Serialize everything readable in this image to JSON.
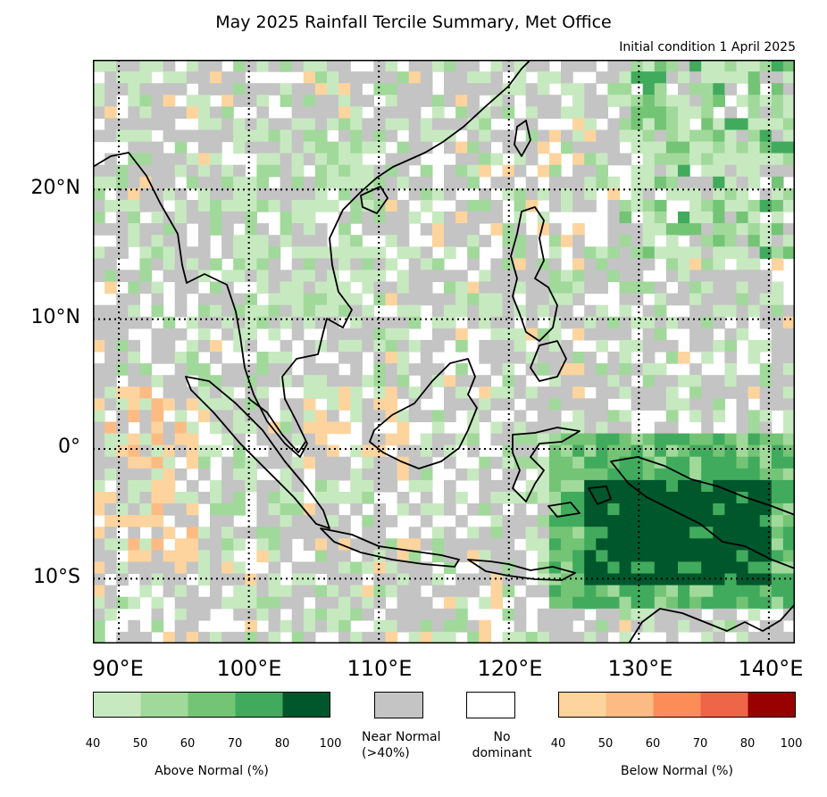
{
  "title": "May 2025 Rainfall Tercile Summary, Met Office",
  "subtitle": "Initial condition 1 April 2025",
  "map": {
    "lon_range": [
      88,
      142
    ],
    "lat_range": [
      -15,
      30
    ],
    "lat_labels": [
      {
        "lat": 20,
        "text": "20°N"
      },
      {
        "lat": 10,
        "text": "10°N"
      },
      {
        "lat": 0,
        "text": "0°"
      },
      {
        "lat": -10,
        "text": "10°S"
      }
    ],
    "lon_labels": [
      {
        "lon": 90,
        "text": "90°E"
      },
      {
        "lon": 100,
        "text": "100°E"
      },
      {
        "lon": 110,
        "text": "110°E"
      },
      {
        "lon": 120,
        "text": "120°E"
      },
      {
        "lon": 130,
        "text": "130°E"
      },
      {
        "lon": 140,
        "text": "140°E"
      }
    ],
    "colors": {
      "near_normal": "#c4c4c4",
      "no_dominant": "#ffffff",
      "coast": "#000000"
    }
  },
  "legend": {
    "above_normal": {
      "title": "Above Normal (%)",
      "ticks": [
        "40",
        "50",
        "60",
        "70",
        "80",
        "100"
      ],
      "colors": [
        "#c7e9c0",
        "#a1d99b",
        "#74c476",
        "#41ab5d",
        "#00572c"
      ]
    },
    "near_normal": {
      "label_line1": "Near Normal",
      "label_line2": "(>40%)",
      "color": "#c4c4c4"
    },
    "no_dominant": {
      "label_line1": "No",
      "label_line2": "dominant",
      "color": "#ffffff"
    },
    "below_normal": {
      "title": "Below Normal (%)",
      "ticks": [
        "40",
        "50",
        "60",
        "70",
        "80",
        "100"
      ],
      "colors": [
        "#fdd49e",
        "#fdbb84",
        "#fc8d59",
        "#ef6548",
        "#990000"
      ]
    }
  }
}
